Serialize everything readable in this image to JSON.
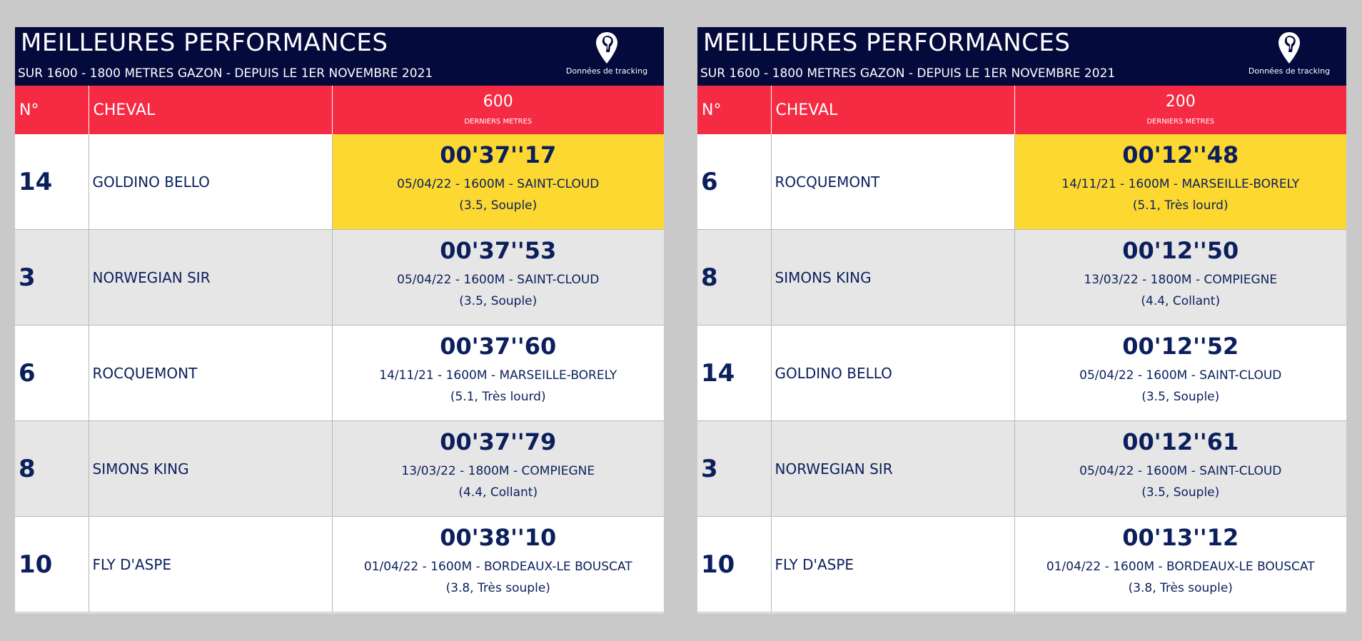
{
  "panels": [
    {
      "title": "MEILLEURES PERFORMANCES",
      "subtitle": "SUR 1600 - 1800 METRES GAZON - DEPUIS LE 1ER NOVEMBRE 2021",
      "logo_text": "Données de tracking",
      "col_num": "N°",
      "col_horse": "CHEVAL",
      "distance": "600",
      "distance_sub": "DERNIERS METRES",
      "rows": [
        {
          "num": "14",
          "horse": "GOLDINO BELLO",
          "time": "00'37''17",
          "info": "05/04/22 - 1600M - SAINT-CLOUD",
          "cond": "(3.5, Souple)"
        },
        {
          "num": "3",
          "horse": "NORWEGIAN SIR",
          "time": "00'37''53",
          "info": "05/04/22 - 1600M - SAINT-CLOUD",
          "cond": "(3.5, Souple)"
        },
        {
          "num": "6",
          "horse": "ROCQUEMONT",
          "time": "00'37''60",
          "info": "14/11/21 - 1600M - MARSEILLE-BORELY",
          "cond": "(5.1, Très lourd)"
        },
        {
          "num": "8",
          "horse": "SIMONS KING",
          "time": "00'37''79",
          "info": "13/03/22 - 1800M - COMPIEGNE",
          "cond": "(4.4, Collant)"
        },
        {
          "num": "10",
          "horse": "FLY D'ASPE",
          "time": "00'38''10",
          "info": "01/04/22 - 1600M - BORDEAUX-LE BOUSCAT",
          "cond": "(3.8, Très souple)"
        }
      ]
    },
    {
      "title": "MEILLEURES PERFORMANCES",
      "subtitle": "SUR 1600 - 1800 METRES GAZON - DEPUIS LE 1ER NOVEMBRE 2021",
      "logo_text": "Données de tracking",
      "col_num": "N°",
      "col_horse": "CHEVAL",
      "distance": "200",
      "distance_sub": "DERNIERS METRES",
      "rows": [
        {
          "num": "6",
          "horse": "ROCQUEMONT",
          "time": "00'12''48",
          "info": "14/11/21 - 1600M - MARSEILLE-BORELY",
          "cond": "(5.1, Très lourd)"
        },
        {
          "num": "8",
          "horse": "SIMONS KING",
          "time": "00'12''50",
          "info": "13/03/22 - 1800M - COMPIEGNE",
          "cond": "(4.4, Collant)"
        },
        {
          "num": "14",
          "horse": "GOLDINO BELLO",
          "time": "00'12''52",
          "info": "05/04/22 - 1600M - SAINT-CLOUD",
          "cond": "(3.5, Souple)"
        },
        {
          "num": "3",
          "horse": "NORWEGIAN SIR",
          "time": "00'12''61",
          "info": "05/04/22 - 1600M - SAINT-CLOUD",
          "cond": "(3.5, Souple)"
        },
        {
          "num": "10",
          "horse": "FLY D'ASPE",
          "time": "00'13''12",
          "info": "01/04/22 - 1600M - BORDEAUX-LE BOUSCAT",
          "cond": "(3.8, Très souple)"
        }
      ]
    }
  ],
  "colors": {
    "header_bg": "#050a3c",
    "col_header_bg": "#f52a43",
    "best_bg": "#fcd831",
    "text": "#0b1f5c"
  },
  "icons": {
    "logo": "horse-head-pin-icon"
  }
}
